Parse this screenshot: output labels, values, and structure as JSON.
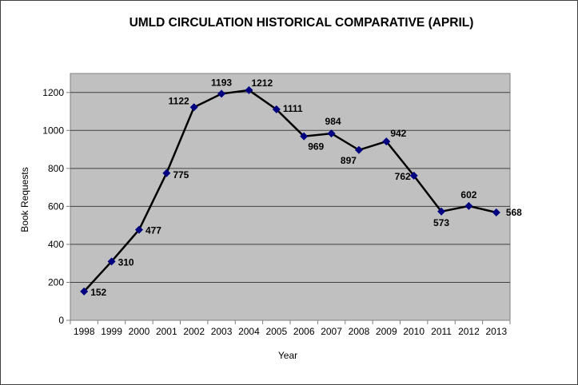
{
  "chart_data": {
    "type": "line",
    "title": "UMLD CIRCULATION HISTORICAL COMPARATIVE (APRIL)",
    "xlabel": "Year",
    "ylabel": "Book Requests",
    "categories": [
      "1998",
      "1999",
      "2000",
      "2001",
      "2002",
      "2003",
      "2004",
      "2005",
      "2006",
      "2007",
      "2008",
      "2009",
      "2010",
      "2011",
      "2012",
      "2013"
    ],
    "values": [
      152,
      310,
      477,
      775,
      1122,
      1193,
      1212,
      1111,
      969,
      984,
      897,
      942,
      762,
      573,
      602,
      568
    ],
    "yticks": [
      0,
      200,
      400,
      600,
      800,
      1000,
      1200
    ],
    "ylim": [
      0,
      1300
    ],
    "grid": true,
    "legend": "none",
    "colors": {
      "plot_bg": "#c0c0c0",
      "line": "#000000",
      "marker": "#000080",
      "grid": "#404040"
    }
  }
}
